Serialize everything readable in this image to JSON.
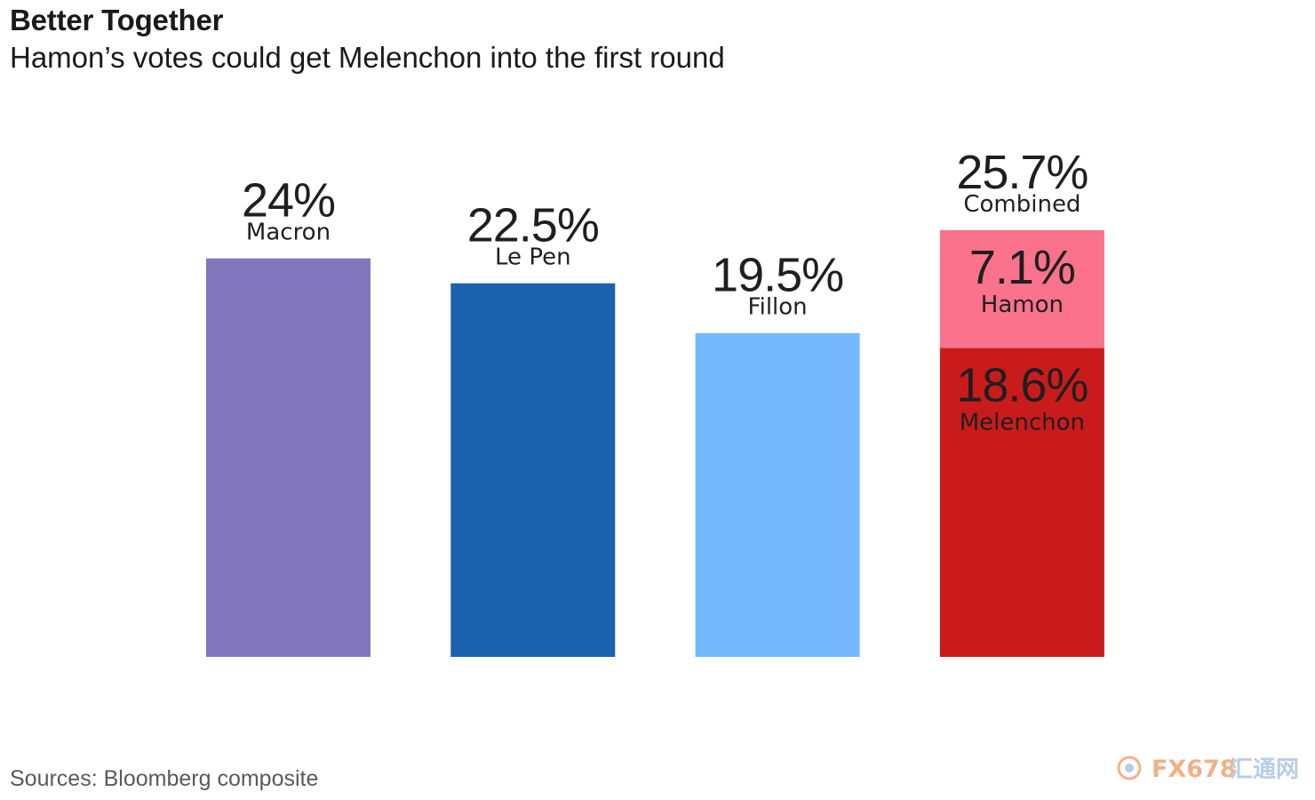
{
  "header": {
    "title": "Better Together",
    "subtitle": "Hamon’s votes could get Melenchon into the first round"
  },
  "footer": {
    "source": "Sources: Bloomberg composite"
  },
  "watermark": {
    "text_latin": "FX678",
    "text_cjk": "汇通网",
    "color": "#f1b187"
  },
  "chart_data": {
    "type": "bar",
    "stacked": true,
    "title": "Better Together",
    "subtitle": "Hamon’s votes could get Melenchon into the first round",
    "xlabel": "",
    "ylabel": "",
    "ylim": [
      0,
      25.7
    ],
    "grid": false,
    "legend": "none",
    "bars": [
      {
        "segments": [
          {
            "name": "Macron",
            "value": 24,
            "value_label": "24%",
            "color": "#8276bc"
          }
        ]
      },
      {
        "segments": [
          {
            "name": "Le Pen",
            "value": 22.5,
            "value_label": "22.5%",
            "color": "#1a62ae"
          }
        ]
      },
      {
        "segments": [
          {
            "name": "Fillon",
            "value": 19.5,
            "value_label": "19.5%",
            "color": "#75b8fd"
          }
        ]
      },
      {
        "total_label": "25.7%",
        "total_name": "Combined",
        "total": 25.7,
        "segments": [
          {
            "name": "Melenchon",
            "value": 18.6,
            "value_label": "18.6%",
            "color": "#c91b1c"
          },
          {
            "name": "Hamon",
            "value": 7.1,
            "value_label": "7.1%",
            "color": "#fa728b"
          }
        ]
      }
    ]
  }
}
